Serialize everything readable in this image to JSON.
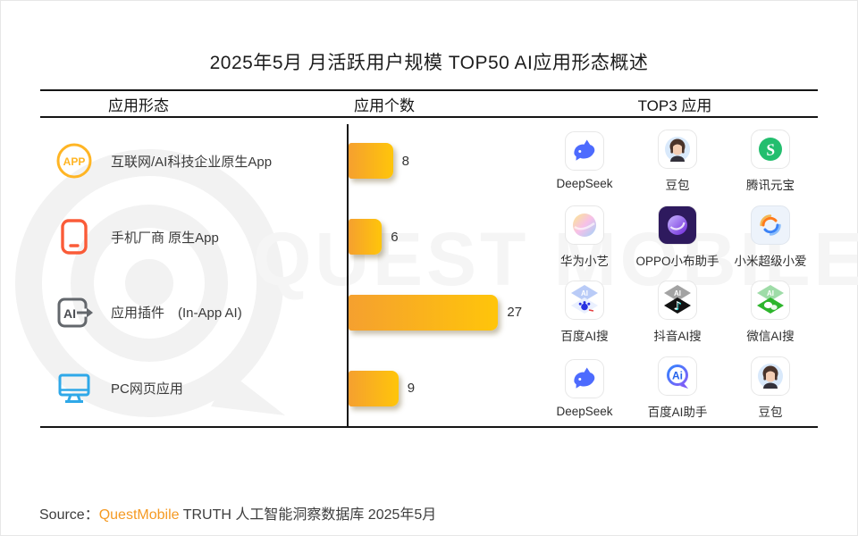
{
  "title": "2025年5月 月活跃用户规模 TOP50 AI应用形态概述",
  "watermark": {
    "text": "QUEST MOBILE"
  },
  "table": {
    "headers": [
      "应用形态",
      "应用个数",
      "TOP3 应用"
    ],
    "rows": [
      {
        "category": "互联网/AI科技企业原生App",
        "category_icon": "app-circle-icon",
        "count": 8,
        "top3": [
          {
            "name": "DeepSeek",
            "icon": "deepseek-whale-icon"
          },
          {
            "name": "豆包",
            "icon": "doubao-avatar-icon"
          },
          {
            "name": "腾讯元宝",
            "icon": "tencent-yuanbao-icon"
          }
        ]
      },
      {
        "category": "手机厂商 原生App",
        "category_icon": "phone-icon",
        "count": 6,
        "top3": [
          {
            "name": "华为小艺",
            "icon": "huawei-xiaoyi-icon"
          },
          {
            "name": "OPPO小布助手",
            "icon": "oppo-xiaobu-icon"
          },
          {
            "name": "小米超级小爱",
            "icon": "xiaomi-xiaoai-icon"
          }
        ]
      },
      {
        "category": "应用插件　(In-App AI)",
        "category_icon": "in-app-ai-icon",
        "count": 27,
        "top3": [
          {
            "name": "百度AI搜",
            "icon": "baidu-ai-search-icon"
          },
          {
            "name": "抖音AI搜",
            "icon": "douyin-ai-search-icon"
          },
          {
            "name": "微信AI搜",
            "icon": "weixin-ai-search-icon"
          }
        ]
      },
      {
        "category": "PC网页应用",
        "category_icon": "pc-monitor-icon",
        "count": 9,
        "top3": [
          {
            "name": "DeepSeek",
            "icon": "deepseek-whale-icon"
          },
          {
            "name": "百度AI助手",
            "icon": "baidu-ai-assistant-icon"
          },
          {
            "name": "豆包",
            "icon": "doubao-avatar-icon"
          }
        ]
      }
    ]
  },
  "source": {
    "prefix": "Source：",
    "brand": "QuestMobile",
    "suffix": " TRUTH 人工智能洞察数据库 2025年5月"
  },
  "colors": {
    "bar_gradient_start": "#F5A02F",
    "bar_gradient_end": "#FFC50A",
    "table_line": "#151515",
    "brand_orange": "#F59A23",
    "watermark_gray": "#F2F2F2"
  },
  "chart_data": {
    "type": "bar",
    "orientation": "horizontal",
    "title": "2025年5月 月活跃用户规模 TOP50 AI应用形态概述",
    "categories": [
      "互联网/AI科技企业原生App",
      "手机厂商 原生App",
      "应用插件　(In-App AI)",
      "PC网页应用"
    ],
    "values": [
      8,
      6,
      27,
      9
    ],
    "xlabel": "应用个数",
    "ylabel": "应用形态",
    "xlim": [
      0,
      30
    ],
    "grid": false,
    "legend": false,
    "value_labels_shown": true,
    "top3_apps_per_category": [
      [
        "DeepSeek",
        "豆包",
        "腾讯元宝"
      ],
      [
        "华为小艺",
        "OPPO小布助手",
        "小米超级小爱"
      ],
      [
        "百度AI搜",
        "抖音AI搜",
        "微信AI搜"
      ],
      [
        "DeepSeek",
        "百度AI助手",
        "豆包"
      ]
    ]
  }
}
